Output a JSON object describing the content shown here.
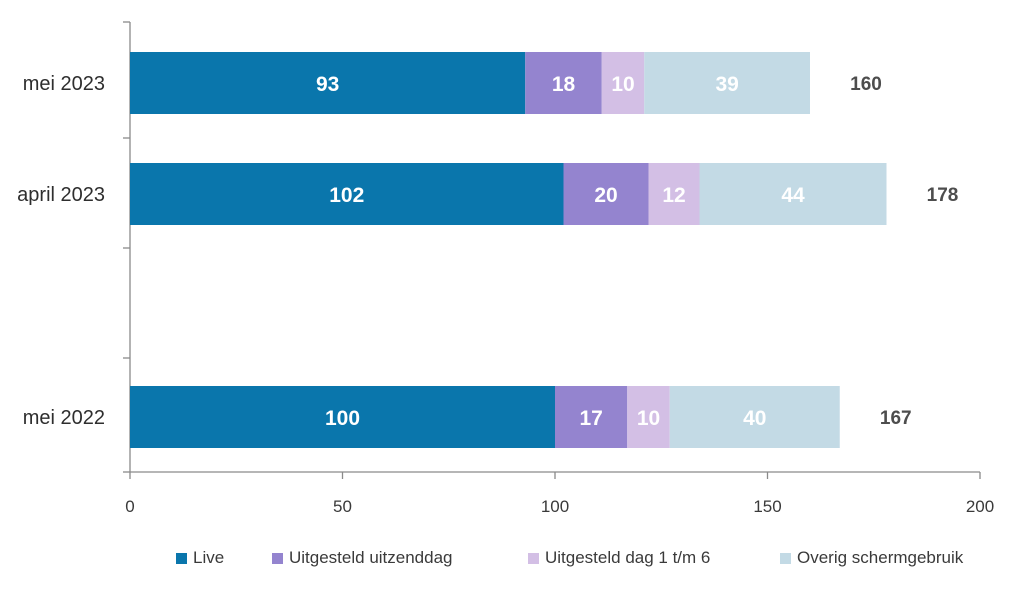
{
  "chart_data": {
    "type": "bar",
    "orientation": "horizontal",
    "stacked": true,
    "categories": [
      "mei 2023",
      "april 2023",
      "mei 2022"
    ],
    "series": [
      {
        "name": "Live",
        "values": [
          93,
          102,
          100
        ],
        "color": "#0a76ac",
        "label_color": "#ffffff"
      },
      {
        "name": "Uitgesteld uitzenddag",
        "values": [
          18,
          20,
          17
        ],
        "color": "#9484cf",
        "label_color": "#ffffff"
      },
      {
        "name": "Uitgesteld dag 1 t/m 6",
        "values": [
          10,
          12,
          10
        ],
        "color": "#d3bfe5",
        "label_color": "#ffffff"
      },
      {
        "name": "Overig schermgebruik",
        "values": [
          39,
          44,
          40
        ],
        "color": "#c3dae5",
        "label_color": "#ffffff"
      }
    ],
    "totals": [
      "160",
      "178",
      "167"
    ],
    "xlim": [
      0,
      200
    ],
    "xticks": [
      "0",
      "50",
      "100",
      "150",
      "200"
    ],
    "grid": false,
    "legend_position": "bottom"
  }
}
